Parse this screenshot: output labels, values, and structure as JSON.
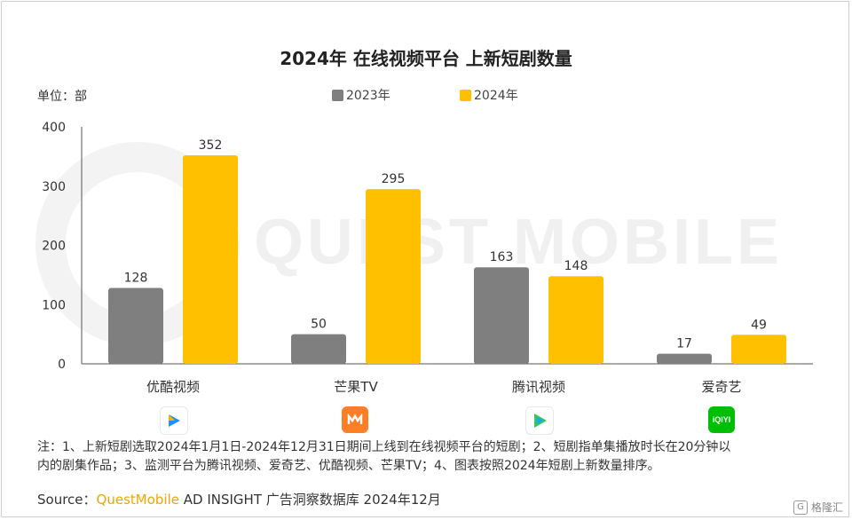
{
  "title": "2024年 在线视频平台 上新短剧数量",
  "unit_label": "单位：部",
  "watermark": "QUEST MOBILE",
  "legend": [
    {
      "name": "2023年",
      "color": "#7f7f7f"
    },
    {
      "name": "2024年",
      "color": "#ffc000"
    }
  ],
  "chart_data": {
    "type": "bar",
    "title": "2024年 在线视频平台 上新短剧数量",
    "ylabel": "单位：部",
    "ylim": [
      0,
      400
    ],
    "yticks": [
      "0",
      "100",
      "200",
      "300",
      "400"
    ],
    "categories": [
      "优酷视频",
      "芒果TV",
      "腾讯视频",
      "爱奇艺"
    ],
    "series": [
      {
        "name": "2023年",
        "values": [
          128,
          50,
          163,
          17
        ],
        "color": "#7f7f7f"
      },
      {
        "name": "2024年",
        "values": [
          352,
          295,
          148,
          49
        ],
        "color": "#ffc000"
      }
    ]
  },
  "logos": [
    {
      "icon": "youku-logo",
      "color": "#1e90ff"
    },
    {
      "icon": "mangotv-logo",
      "color": "#ff7f27"
    },
    {
      "icon": "tencent-video-logo",
      "color": "#34c759"
    },
    {
      "icon": "iqiyi-logo",
      "color": "#00be06",
      "text": "iQIYI"
    }
  ],
  "note_line1": "注：1、上新短剧选取2024年1月1日-2024年12月31日期间上线到在线视频平台的短剧；2、短剧指单集播放时长在20分钟以",
  "note_line2": "内的剧集作品；3、监测平台为腾讯视频、爱奇艺、优酷视频、芒果TV；4、图表按照2024年短剧上新数量排序。",
  "source_prefix": "Source：",
  "source_brand": "QuestMobile",
  "source_rest": " AD INSIGHT 广告洞察数据库 2024年12月",
  "badge_text": "格隆汇"
}
